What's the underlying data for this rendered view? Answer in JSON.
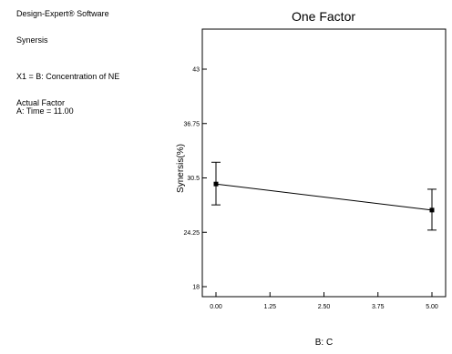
{
  "info": {
    "software": "Design-Expert® Software",
    "response": "Synersis",
    "x1": "X1 = B: Concentration of NE",
    "actual_factor_heading": "Actual Factor",
    "actual_factor_value": "A: Time = 11.00"
  },
  "chart_data": {
    "type": "line",
    "title": "One Factor",
    "xlabel": "B: C",
    "ylabel": "Synersis(%)",
    "xlim": [
      0,
      5
    ],
    "ylim": [
      18,
      43
    ],
    "x_ticks": [
      "0.00",
      "1.25",
      "2.50",
      "3.75",
      "5.00"
    ],
    "x_tick_values": [
      0,
      1.25,
      2.5,
      3.75,
      5
    ],
    "y_ticks": [
      "18",
      "24.25",
      "30.5",
      "36.75",
      "43"
    ],
    "y_tick_values": [
      18,
      24.25,
      30.5,
      36.75,
      43
    ],
    "grid": false,
    "series": [
      {
        "x": [
          0,
          5
        ],
        "y": [
          29.8,
          26.8
        ],
        "error_low": [
          27.4,
          24.5
        ],
        "error_high": [
          32.3,
          29.2
        ]
      }
    ],
    "colors": {
      "line": "#000000",
      "marker": "#000000",
      "axes": "#000000"
    }
  }
}
